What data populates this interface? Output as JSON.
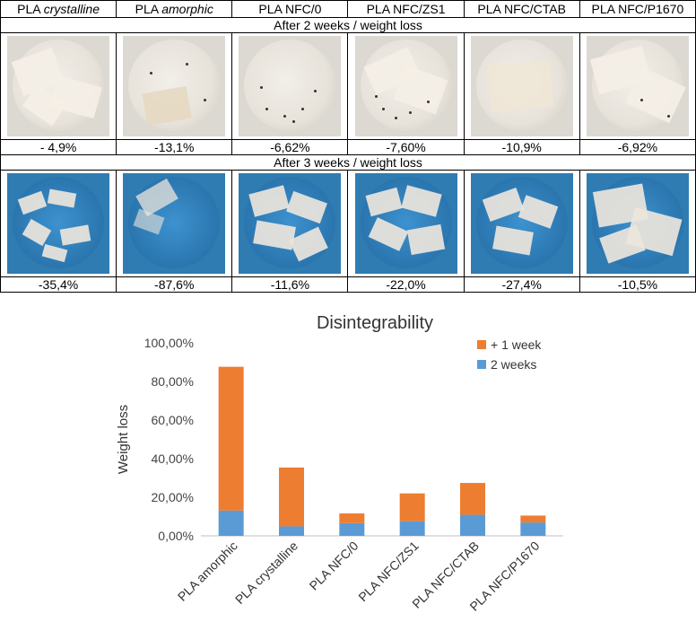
{
  "table": {
    "columns": [
      {
        "prefix": "PLA ",
        "suffix": "crystalline",
        "italic": true
      },
      {
        "prefix": "PLA ",
        "suffix": "amorphic",
        "italic": true
      },
      {
        "prefix": "PLA NFC/0",
        "suffix": "",
        "italic": false
      },
      {
        "prefix": "PLA NFC/ZS1",
        "suffix": "",
        "italic": false
      },
      {
        "prefix": "PLA NFC/CTAB",
        "suffix": "",
        "italic": false
      },
      {
        "prefix": "PLA NFC/P1670",
        "suffix": "",
        "italic": false
      }
    ],
    "week2_label": "After 2 weeks / weight loss",
    "week2_values": [
      "- 4,9%",
      "-13,1%",
      "-6,62%",
      "-7,60%",
      "-10,9%",
      "-6,92%"
    ],
    "week3_label": "After 3 weeks / weight loss",
    "week3_values": [
      "-35,4%",
      "-87,6%",
      "-11,6%",
      "-22,0%",
      "-27,4%",
      "-10,5%"
    ]
  },
  "chart_data": {
    "type": "bar",
    "stacked": true,
    "title": "Disintegrability",
    "xlabel": "",
    "ylabel": "Weight loss",
    "categories": [
      "PLA amorphic",
      "PLA crystalline",
      "PLA NFC/0",
      "PLA NFC/ZS1",
      "PLA NFC/CTAB",
      "PLA NFC/P1670"
    ],
    "series": [
      {
        "name": "2 weeks",
        "color": "#5b9bd5",
        "values": [
          13.1,
          4.9,
          6.62,
          7.6,
          10.9,
          6.92
        ]
      },
      {
        "name": "+ 1 week",
        "color": "#ed7d31",
        "values": [
          74.5,
          30.5,
          4.98,
          14.4,
          16.5,
          3.58
        ]
      }
    ],
    "ylim": [
      0,
      100
    ],
    "yticks": [
      "0,00%",
      "20,00%",
      "40,00%",
      "60,00%",
      "80,00%",
      "100,00%"
    ],
    "ytick_values": [
      0,
      20,
      40,
      60,
      80,
      100
    ],
    "legend_position": "top-right",
    "grid": false
  }
}
